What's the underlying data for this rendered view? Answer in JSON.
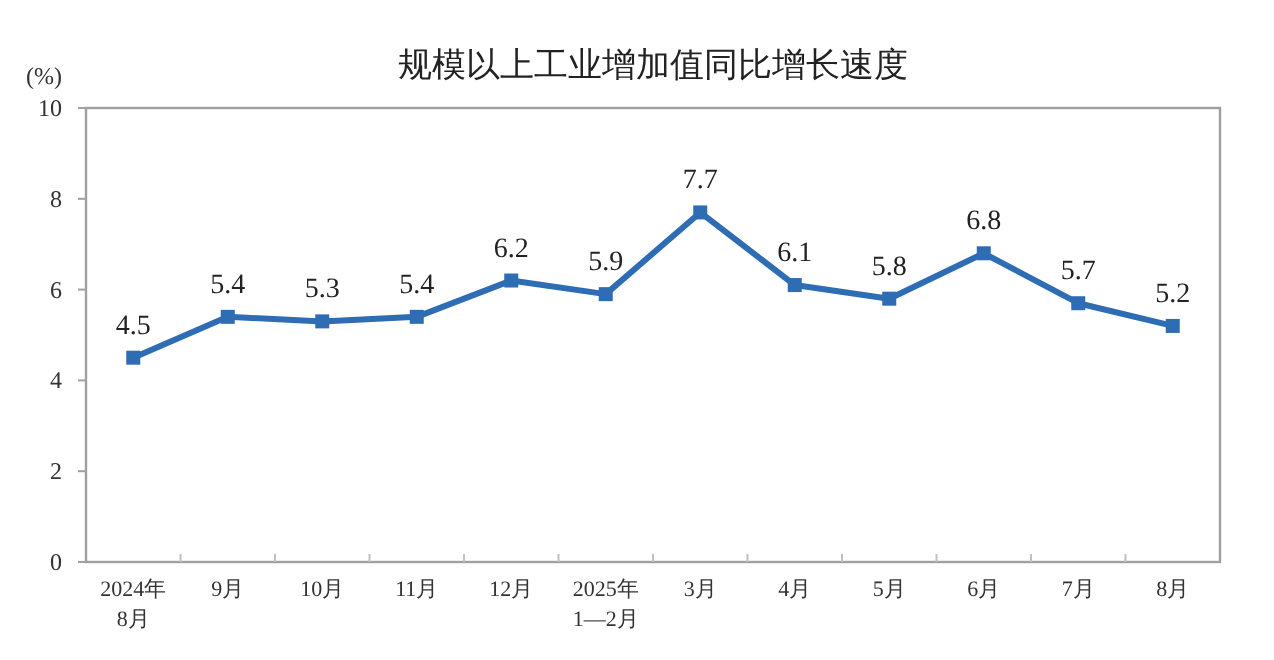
{
  "chart_data": {
    "type": "line",
    "title": "规模以上工业增加值同比增长速度",
    "ylabel": "(%)",
    "categories": [
      "2024年\n8月",
      "9月",
      "10月",
      "11月",
      "12月",
      "2025年\n1—2月",
      "3月",
      "4月",
      "5月",
      "6月",
      "7月",
      "8月"
    ],
    "series": [
      {
        "color": "#2e6db4",
        "values": [
          4.5,
          5.4,
          5.3,
          5.4,
          6.2,
          5.9,
          7.7,
          6.1,
          5.8,
          6.8,
          5.7,
          5.2
        ]
      }
    ],
    "ylim": [
      0,
      10
    ],
    "yticks": [
      0,
      2,
      4,
      6,
      8,
      10
    ],
    "data_labels": true,
    "marker": "square",
    "line_style": "solid"
  }
}
